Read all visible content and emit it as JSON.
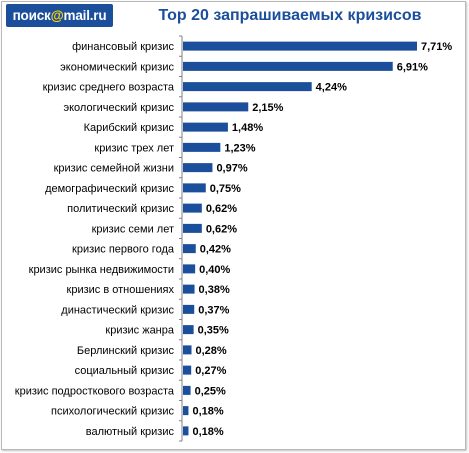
{
  "header": {
    "logo_left": "поиск",
    "logo_at": "@",
    "logo_right": "mail.ru",
    "title": "Top 20 запрашиваемых кризисов"
  },
  "colors": {
    "bar": "#1b4f9c",
    "axis": "#808080",
    "title": "#1b4f9c",
    "logo_bg": "#1b4f9c",
    "logo_at": "#ffd400"
  },
  "chart_data": {
    "type": "bar",
    "orientation": "horizontal",
    "title": "Top 20 запрашиваемых кризисов",
    "xlabel": "",
    "ylabel": "",
    "xlim": [
      0,
      8
    ],
    "grid": false,
    "legend": "none",
    "categories": [
      "финансовый кризис",
      "экономический кризис",
      "кризис среднего возраста",
      "экологический кризис",
      "Карибский кризис",
      "кризис трех лет",
      "кризис семейной жизни",
      "демографический кризис",
      "политический кризис",
      "кризис семи лет",
      "кризис первого года",
      "кризис рынка недвижимости",
      "кризис в отношениях",
      "династический кризис",
      "кризис жанра",
      "Берлинский кризис",
      "социальный кризис",
      "кризис подросткового возраста",
      "психологический кризис",
      "валютный кризис"
    ],
    "values": [
      7.71,
      6.91,
      4.24,
      2.15,
      1.48,
      1.23,
      0.97,
      0.75,
      0.62,
      0.62,
      0.42,
      0.4,
      0.38,
      0.37,
      0.35,
      0.28,
      0.27,
      0.25,
      0.18,
      0.18
    ],
    "value_labels": [
      "7,71%",
      "6,91%",
      "4,24%",
      "2,15%",
      "1,48%",
      "1,23%",
      "0,97%",
      "0,75%",
      "0,62%",
      "0,62%",
      "0,42%",
      "0,40%",
      "0,38%",
      "0,37%",
      "0,35%",
      "0,28%",
      "0,27%",
      "0,25%",
      "0,18%",
      "0,18%"
    ]
  }
}
